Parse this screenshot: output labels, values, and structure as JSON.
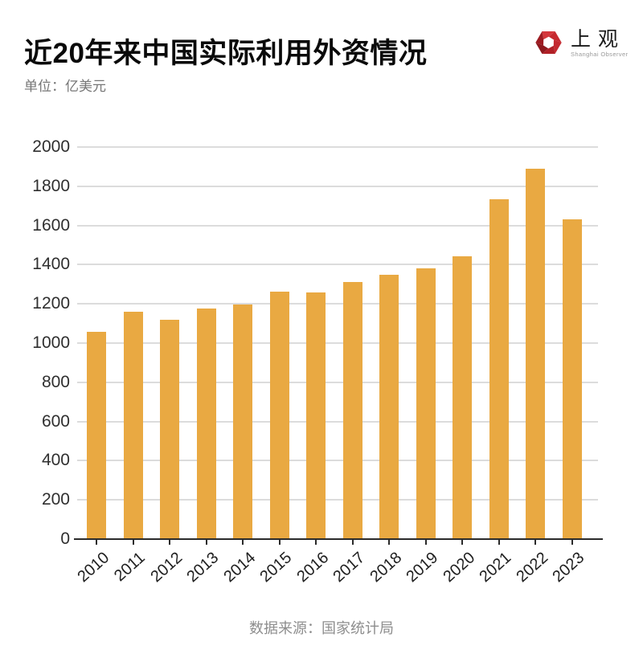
{
  "header": {
    "title": "近20年来中国实际利用外资情况",
    "logo": {
      "cn": "上观",
      "en": "Shanghai Observer",
      "mark_colors": [
        "#c62a30",
        "#d4373c",
        "#9e1c22",
        "#8f191e",
        "#b02026",
        "#c42930"
      ]
    }
  },
  "unit_label": "单位：亿美元",
  "footer": {
    "source": "数据来源：国家统计局"
  },
  "chart_data": {
    "type": "bar",
    "title": "近20年来中国实际利用外资情况",
    "unit": "亿美元",
    "categories": [
      "2010",
      "2011",
      "2012",
      "2013",
      "2014",
      "2015",
      "2016",
      "2017",
      "2018",
      "2019",
      "2020",
      "2021",
      "2022",
      "2023"
    ],
    "values": [
      1057,
      1160,
      1117,
      1176,
      1196,
      1263,
      1260,
      1310,
      1350,
      1381,
      1444,
      1735,
      1891,
      1633
    ],
    "xlabel": "",
    "ylabel": "单位：亿美元",
    "ylim": [
      0,
      2000
    ],
    "yticks": [
      0,
      200,
      400,
      600,
      800,
      1000,
      1200,
      1400,
      1600,
      1800,
      2000
    ],
    "grid": true,
    "legend_position": "none",
    "bar_color": "#E9A942",
    "grid_color": "#dcdcdc",
    "axis_color": "#2b2b2b",
    "source": "数据来源：国家统计局"
  }
}
